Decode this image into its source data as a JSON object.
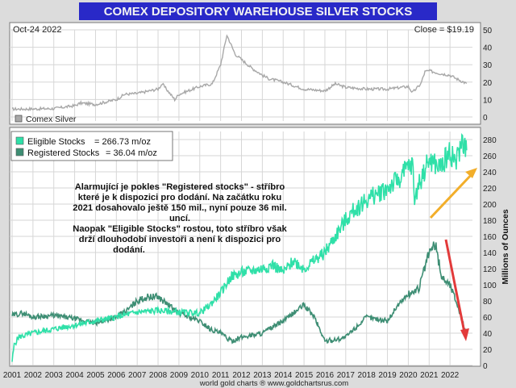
{
  "chart_data": [
    {
      "type": "line",
      "title": "COMEX DEPOSITORY WAREHOUSE SILVER STOCKS",
      "date_label": "Oct-24  2022",
      "close_label": "Close = $19.19",
      "legend": [
        "Comex Silver"
      ],
      "ylim": [
        0,
        50
      ],
      "yticks": [
        0,
        10,
        20,
        30,
        40,
        50
      ],
      "series": [
        {
          "name": "Comex Silver",
          "color": "#a8a8a8",
          "x": [
            2001,
            2002,
            2003,
            2004,
            2004.3,
            2005,
            2006,
            2006.4,
            2007,
            2008,
            2008.2,
            2008.8,
            2009,
            2010,
            2010.6,
            2011,
            2011.3,
            2011.7,
            2012,
            2012.5,
            2013,
            2013.3,
            2014,
            2015,
            2016,
            2016.5,
            2017,
            2018,
            2019,
            2020,
            2020.2,
            2020.6,
            2020.8,
            2021,
            2021.5,
            2022,
            2022.3,
            2022.8
          ],
          "values": [
            4.5,
            4.6,
            4.8,
            6.5,
            8,
            7.2,
            10,
            13,
            13.5,
            16,
            19,
            10,
            13,
            17.5,
            19,
            30,
            47,
            36,
            33,
            28,
            24,
            22,
            20,
            16,
            15,
            19,
            17,
            16,
            16,
            17.5,
            14,
            19,
            26,
            26.5,
            25,
            24,
            22,
            19.19
          ]
        }
      ]
    },
    {
      "type": "line",
      "ylabel": "Millions of Ounces",
      "xlabel": "",
      "xlim": [
        2001,
        2023
      ],
      "xticks": [
        2001,
        2002,
        2003,
        2004,
        2005,
        2006,
        2007,
        2008,
        2009,
        2010,
        2011,
        2012,
        2013,
        2014,
        2015,
        2016,
        2017,
        2018,
        2019,
        2020,
        2021,
        2022
      ],
      "ylim": [
        0,
        290
      ],
      "yticks": [
        0,
        20,
        40,
        60,
        80,
        100,
        120,
        140,
        160,
        180,
        200,
        220,
        240,
        260,
        280
      ],
      "legend": [
        "Eligible Stocks  = 266.73 m/oz",
        "Registered Stocks = 36.04 m/oz"
      ],
      "series": [
        {
          "name": "Eligible Stocks",
          "value_label": "266.73 m/oz",
          "color": "#2fe0a8",
          "x": [
            2001,
            2001.1,
            2001.3,
            2002,
            2003,
            2004,
            2005,
            2006,
            2007,
            2008,
            2009,
            2010,
            2010.5,
            2011,
            2011.5,
            2012,
            2013,
            2013.5,
            2014,
            2014.5,
            2015,
            2015.5,
            2016,
            2016.5,
            2017,
            2017.5,
            2018,
            2019,
            2019.5,
            2020,
            2020.2,
            2020.3,
            2020.5,
            2021,
            2021.5,
            2022,
            2022.3,
            2022.6,
            2022.8
          ],
          "values": [
            5,
            25,
            35,
            40,
            45,
            50,
            55,
            60,
            66,
            68,
            66,
            65,
            75,
            90,
            110,
            115,
            120,
            125,
            115,
            130,
            120,
            130,
            140,
            160,
            180,
            195,
            205,
            220,
            230,
            245,
            250,
            205,
            225,
            255,
            245,
            265,
            252,
            280,
            266.73
          ]
        },
        {
          "name": "Registered Stocks",
          "value_label": "36.04 m/oz",
          "color": "#3e8e74",
          "x": [
            2001,
            2001.5,
            2002,
            2003,
            2004,
            2004.5,
            2005,
            2006,
            2006.5,
            2007,
            2007.5,
            2008,
            2008.5,
            2009,
            2010,
            2010.5,
            2011,
            2011.5,
            2012,
            2013,
            2014,
            2015,
            2015.5,
            2016,
            2016.5,
            2017,
            2018,
            2019,
            2019.5,
            2020,
            2020.5,
            2021,
            2021.3,
            2021.6,
            2022,
            2022.3,
            2022.6,
            2022.8
          ],
          "values": [
            62,
            65,
            60,
            62,
            58,
            55,
            52,
            60,
            68,
            80,
            85,
            85,
            75,
            65,
            55,
            45,
            40,
            30,
            35,
            40,
            55,
            75,
            60,
            30,
            32,
            35,
            60,
            55,
            75,
            88,
            95,
            140,
            150,
            110,
            100,
            80,
            55,
            36.04
          ]
        }
      ]
    }
  ],
  "annotation": {
    "line1": "Alarmující je pokles \"Registered stocks\" - stříbro",
    "line2": "které je k dispozici pro dodání. Na začátku roku",
    "line3": "2021 dosahovalo ještě 150 mil., nyní pouze 36 mil.",
    "line4": "uncí.",
    "line5": "Naopak \"Eligible Stocks\" rostou, toto stříbro však",
    "line6": "drží dlouhodobí investoři a není k dispozici pro",
    "line7": "dodání."
  },
  "footer": "world gold charts ® www.goldchartsrus.com",
  "colors": {
    "title_bg": "#2929c8",
    "title_text": "#f2f2f2",
    "panel_bg": "#ffffff",
    "arrow_up": "#f2ae2a",
    "arrow_down": "#e23a3a"
  }
}
